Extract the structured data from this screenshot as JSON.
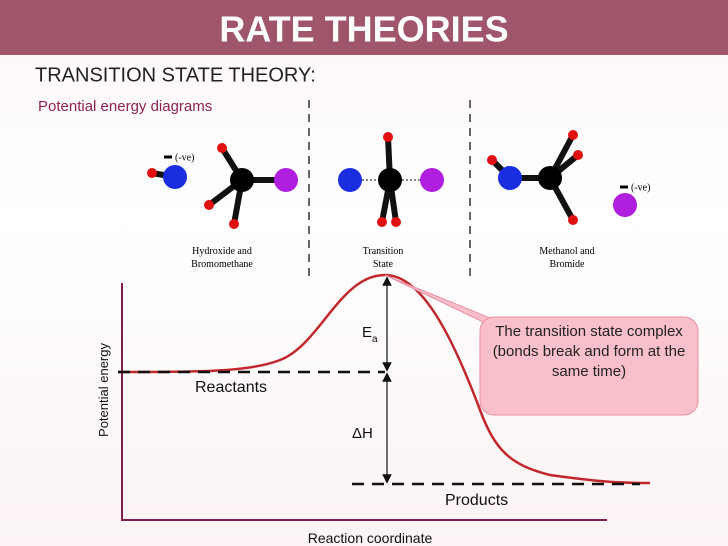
{
  "header": {
    "title": "RATE THEORIES"
  },
  "heading": "TRANSITION STATE THEORY:",
  "subheading": "Potential energy diagrams",
  "molecules": [
    {
      "label": [
        "Hydroxide and",
        "Bromomethane"
      ],
      "charge": "(-ve)"
    },
    {
      "label": [
        "Transition",
        "State"
      ]
    },
    {
      "label": [
        "Methanol and",
        "Bromide"
      ],
      "charge": "(-ve)"
    }
  ],
  "diagram": {
    "y_axis_label": "Potential energy",
    "x_axis_label": "Reaction coordinate",
    "activation_energy": {
      "symbol": "E",
      "subscript": "a"
    },
    "enthalpy_change": "ΔH",
    "reactants": "Reactants",
    "products": "Products",
    "callout": "The transition state complex (bonds break and form at the same time)"
  }
}
